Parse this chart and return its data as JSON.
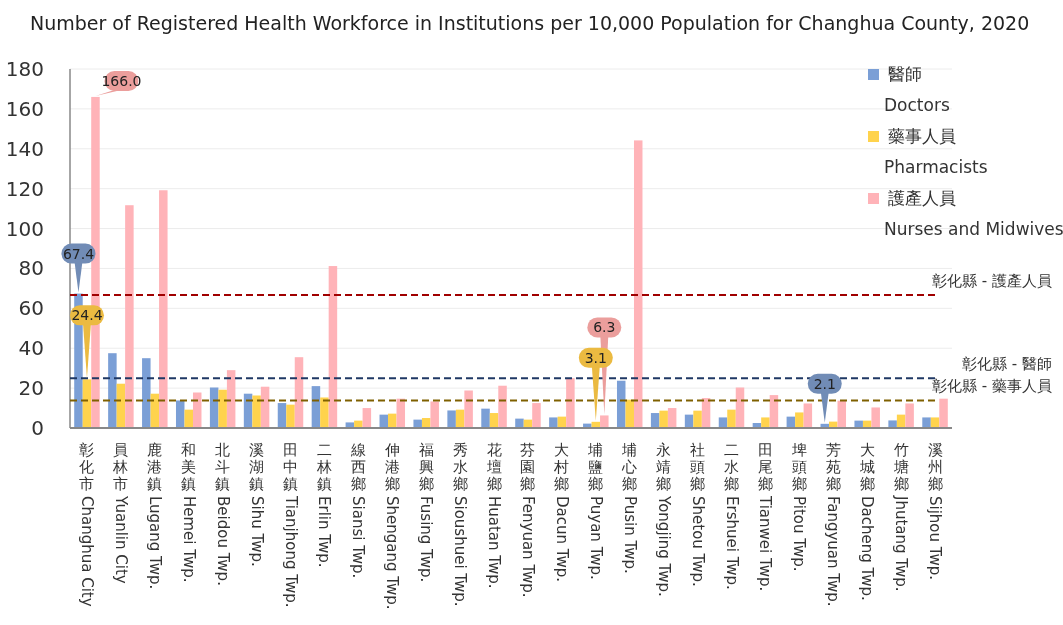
{
  "chart_data": {
    "type": "bar",
    "title": "Number of Registered Health Workforce in Institutions per 10,000 Population for Changhua County, 2020",
    "categories": [
      "彰化市 Changhua City",
      "員林市 Yuanlin City",
      "鹿港鎮 Lugang Twp.",
      "和美鎮 Hemei Twp.",
      "北斗鎮 Beidou Twp.",
      "溪湖鎮 Sihu Twp.",
      "田中鎮 Tianjhong Twp.",
      "二林鎮 Erlin Twp.",
      "線西鄉 Siansi Twp.",
      "伸港鄉 Shengang Twp.",
      "福興鄉 Fusing Twp.",
      "秀水鄉 Sioushuei Twp.",
      "花壇鄉 Huatan Twp.",
      "芬園鄉 Fenyuan Twp.",
      "大村鄉 Dacun Twp.",
      "埔鹽鄉 Puyan Twp.",
      "埔心鄉 Pusin Twp.",
      "永靖鄉 Yongjing Twp.",
      "社頭鄉 Shetou Twp.",
      "二水鄉 Ershuei Twp.",
      "田尾鄉 Tianwei Twp.",
      "埤頭鄉 Pitou Twp.",
      "芳苑鄉 Fangyuan Twp.",
      "大城鄉 Dacheng Twp.",
      "竹塘鄉 Jhutang Twp.",
      "溪州鄉 Sijhou Twp."
    ],
    "series": [
      {
        "name": "醫師\nDoctors",
        "color": "#7b9fd6",
        "values": [
          67.4,
          37.5,
          35,
          13.8,
          20.3,
          17.2,
          12.5,
          21,
          2.8,
          6.7,
          4.2,
          8.8,
          9.7,
          4.7,
          5.3,
          2.2,
          23.7,
          7.5,
          6.7,
          5.3,
          2.5,
          5.7,
          2.1,
          3.7,
          3.8,
          5.3
        ],
        "value_labels": [
          "67.4",
          null,
          null,
          null,
          null,
          null,
          null,
          null,
          null,
          null,
          null,
          null,
          null,
          null,
          null,
          null,
          null,
          null,
          null,
          null,
          null,
          null,
          "2.1",
          null,
          null,
          null
        ]
      },
      {
        "name": "藥事人員\nPharmacists",
        "color": "#ffd34d",
        "values": [
          24.4,
          22.2,
          17.2,
          9.2,
          19.2,
          16.3,
          11.7,
          15.3,
          3.7,
          7.2,
          5,
          9.2,
          7.5,
          4.2,
          5.7,
          3.1,
          14.2,
          8.7,
          8.7,
          9.2,
          5.3,
          7.8,
          3.2,
          3.7,
          6.7,
          5.3
        ],
        "value_labels": [
          "24.4",
          null,
          null,
          null,
          null,
          null,
          null,
          null,
          null,
          null,
          null,
          null,
          null,
          null,
          null,
          "3.1",
          null,
          null,
          null,
          null,
          null,
          null,
          null,
          null,
          null,
          null
        ]
      },
      {
        "name": "護產人員\nNurses and Midwives",
        "color": "#ffb3b8",
        "values": [
          166.0,
          111.7,
          119.2,
          17.8,
          29,
          20.7,
          35.5,
          81.2,
          10,
          14.7,
          13.3,
          18.8,
          21.2,
          12.5,
          25,
          6.3,
          144.2,
          10,
          15,
          20.3,
          16.5,
          12.3,
          13.7,
          10.3,
          12.3,
          14.7
        ],
        "value_labels": [
          "166.0",
          null,
          null,
          null,
          null,
          null,
          null,
          null,
          null,
          null,
          null,
          null,
          null,
          null,
          null,
          "6.3",
          null,
          null,
          null,
          null,
          null,
          null,
          null,
          null,
          null,
          null
        ]
      }
    ],
    "ylim": [
      0,
      180
    ],
    "yticks": [
      0,
      20,
      40,
      60,
      80,
      100,
      120,
      140,
      160,
      180
    ],
    "grid": "y",
    "legend": "top right",
    "ref_lines": [
      {
        "axis": "y",
        "value": 66.7,
        "label": "彰化縣 - 護產人員",
        "color": "#a00000",
        "line_style": "dashed"
      },
      {
        "axis": "y",
        "value": 25,
        "label": "彰化縣 - 醫師",
        "color": "#1f3864",
        "line_style": "dashed"
      },
      {
        "axis": "y",
        "value": 13.8,
        "label": "彰化縣 - 藥事人員",
        "color": "#7f6000",
        "line_style": "dashed"
      }
    ]
  }
}
